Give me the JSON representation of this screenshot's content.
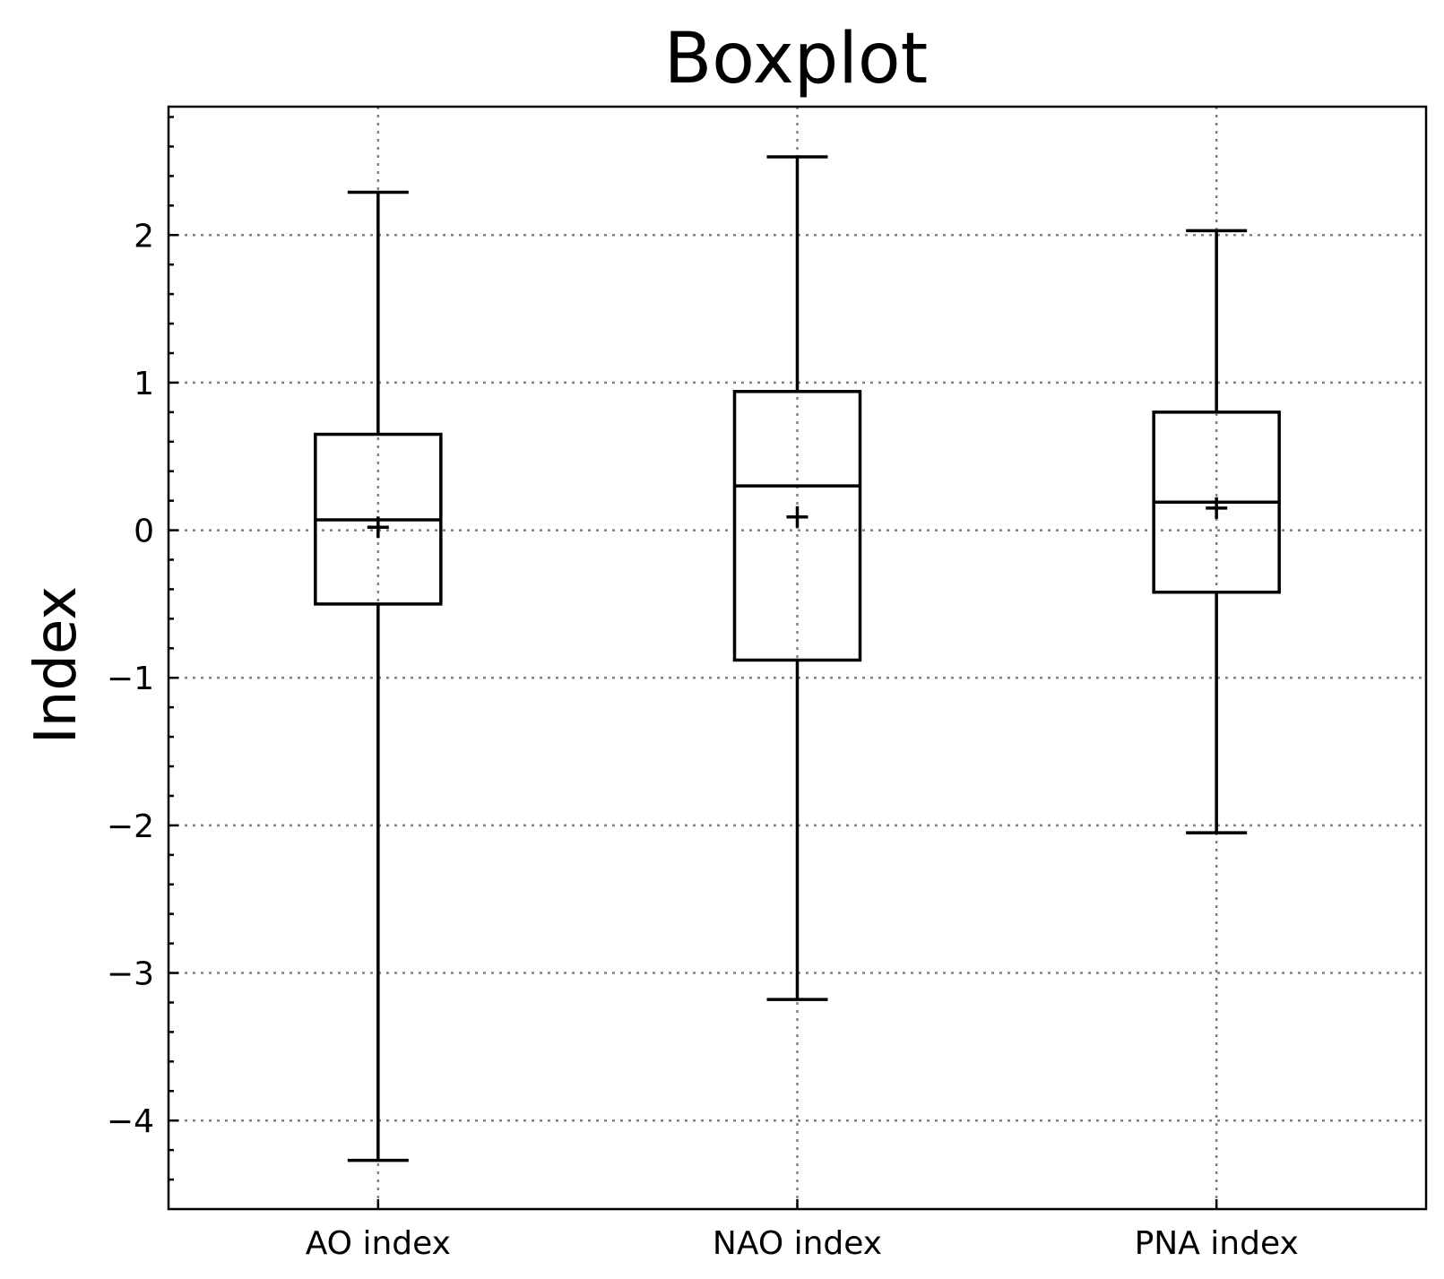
{
  "chart_data": {
    "type": "boxplot",
    "title": "Boxplot",
    "ylabel": "Index",
    "xlabel": "",
    "ylim": [
      -4.6,
      2.87
    ],
    "yticks": [
      2,
      1,
      0,
      -1,
      -2,
      -3,
      -4
    ],
    "ytick_labels": [
      "2",
      "1",
      "0",
      "−1",
      "−2",
      "−3",
      "−4"
    ],
    "grid": true,
    "categories": [
      "AO index",
      "NAO index",
      "PNA index"
    ],
    "boxes": [
      {
        "whisker_low": -4.27,
        "q1": -0.5,
        "median": 0.07,
        "q3": 0.65,
        "whisker_high": 2.29,
        "mean": 0.02
      },
      {
        "whisker_low": -3.18,
        "q1": -0.88,
        "median": 0.3,
        "q3": 0.94,
        "whisker_high": 2.53,
        "mean": 0.09
      },
      {
        "whisker_low": -2.05,
        "q1": -0.42,
        "median": 0.19,
        "q3": 0.8,
        "whisker_high": 2.03,
        "mean": 0.15
      }
    ]
  }
}
